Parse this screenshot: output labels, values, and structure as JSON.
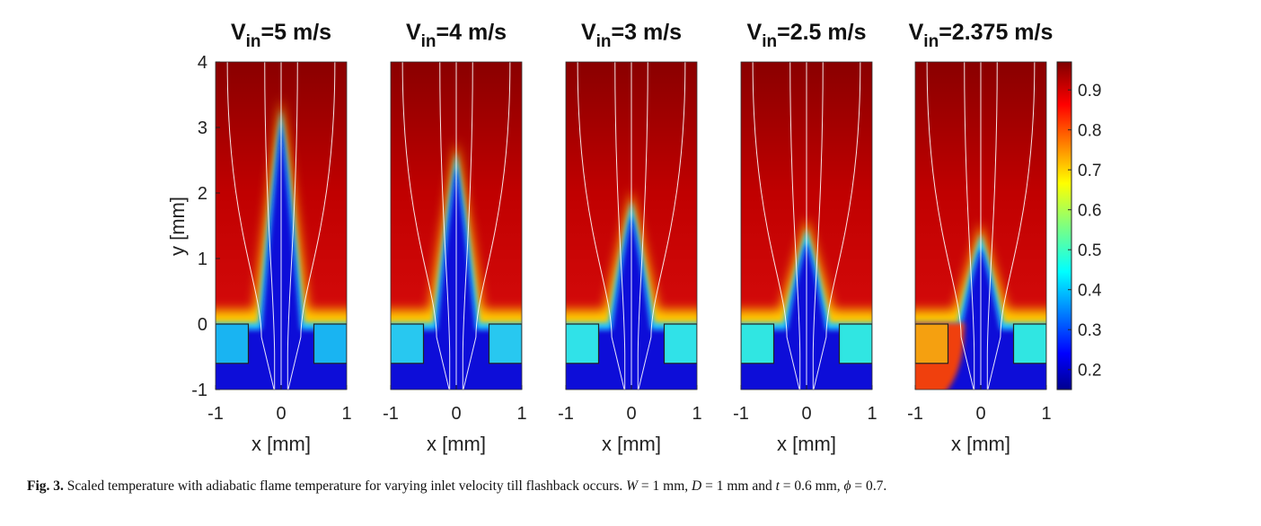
{
  "figure": {
    "panels": [
      {
        "title_main": "V",
        "title_sub": "in",
        "title_rest": "=5 m/s",
        "flame_tip_y": 3.2,
        "flashback": false,
        "block_colors": [
          "#19b4f2",
          "#19b4f2"
        ]
      },
      {
        "title_main": "V",
        "title_sub": "in",
        "title_rest": "=4 m/s",
        "flame_tip_y": 2.55,
        "flashback": false,
        "block_colors": [
          "#28c8f0",
          "#28c8f0"
        ]
      },
      {
        "title_main": "V",
        "title_sub": "in",
        "title_rest": "=3 m/s",
        "flame_tip_y": 1.8,
        "flashback": false,
        "block_colors": [
          "#30e2e8",
          "#30e2e8"
        ]
      },
      {
        "title_main": "V",
        "title_sub": "in",
        "title_rest": "=2.5 m/s",
        "flame_tip_y": 1.38,
        "flashback": false,
        "block_colors": [
          "#30e6e2",
          "#30e6e2"
        ]
      },
      {
        "title_main": "V",
        "title_sub": "in",
        "title_rest": "=2.375 m/s",
        "flame_tip_y": 1.3,
        "flashback": true,
        "block_colors": [
          "#f5a010",
          "#30e6e2"
        ]
      }
    ],
    "x_ticks": [
      "-1",
      "0",
      "1"
    ],
    "y_ticks": [
      "4",
      "3",
      "2",
      "1",
      "0",
      "-1"
    ],
    "xlabel": "x [mm]",
    "ylabel": "y [mm]",
    "colorbar_ticks": [
      "0.9",
      "0.8",
      "0.7",
      "0.6",
      "0.5",
      "0.4",
      "0.3",
      "0.2"
    ],
    "colormap": "jet"
  },
  "caption": {
    "label": "Fig. 3.",
    "text": "Scaled temperature with adiabatic flame temperature for varying inlet velocity till flashback occurs.",
    "W": "W",
    "W_value": " = 1 mm, ",
    "D": "D",
    "D_value": " = 1 mm and ",
    "t": "t",
    "t_value": " = 0.6 mm, ",
    "phi": "ϕ",
    "phi_value": " = 0.7."
  }
}
